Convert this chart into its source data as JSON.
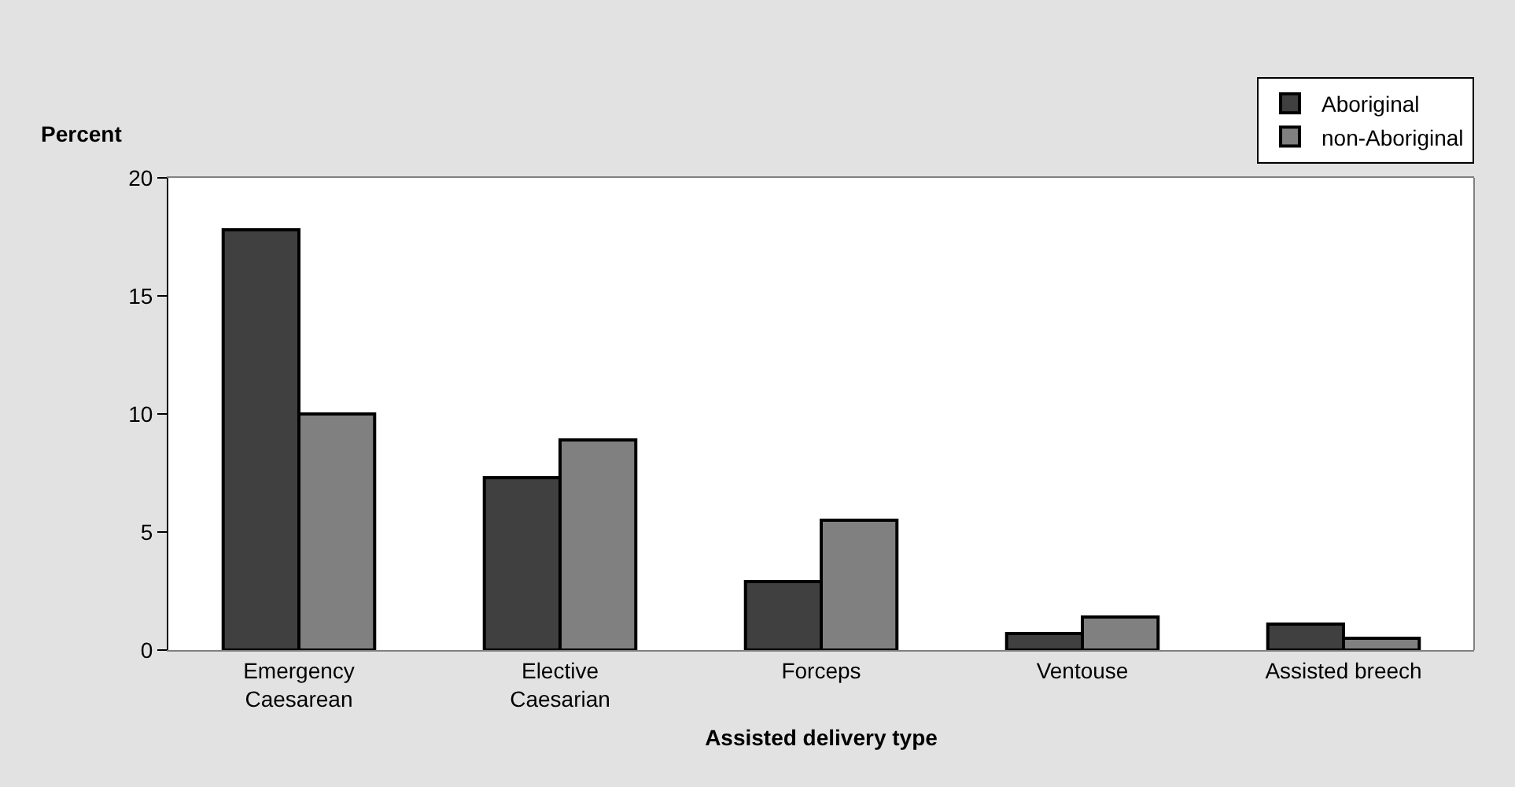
{
  "chart_data": {
    "type": "bar",
    "xlabel": "Assisted delivery type",
    "ylabel": "Percent",
    "categories": [
      "Emergency\nCaesarean",
      "Elective\nCaesarian",
      "Forceps",
      "Ventouse",
      "Assisted breech"
    ],
    "series": [
      {
        "name": "Aboriginal",
        "color": "#404040",
        "values": [
          17.8,
          7.3,
          2.9,
          0.7,
          1.1
        ]
      },
      {
        "name": "non-Aboriginal",
        "color": "#808080",
        "values": [
          10.0,
          8.9,
          5.5,
          1.4,
          0.5
        ]
      }
    ],
    "ylim": [
      0,
      20
    ],
    "yticks": [
      0,
      5,
      10,
      15,
      20
    ],
    "legend": "top right"
  }
}
